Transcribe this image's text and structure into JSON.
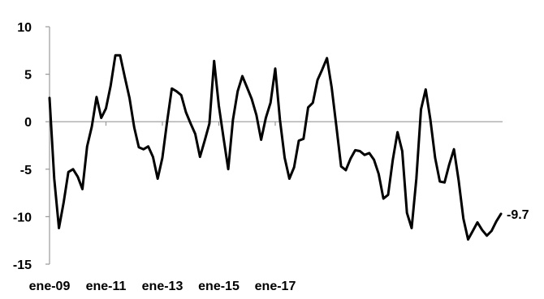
{
  "chart_data": {
    "type": "line",
    "title": "",
    "xlabel": "",
    "ylabel": "",
    "ylim": [
      -15,
      10
    ],
    "yticks": [
      10,
      5,
      0,
      -5,
      -10,
      -15
    ],
    "x_start": "ene-09",
    "x_period": "bimonthly",
    "xtick_labels": [
      "ene-09",
      "ene-11",
      "ene-13",
      "ene-15",
      "ene-17"
    ],
    "grid": false,
    "legend": "none",
    "line_color": "#000000",
    "end_label": "-9.7",
    "series": [
      {
        "values": [
          2.5,
          -6.0,
          -11.2,
          -8.5,
          -5.3,
          -5.0,
          -5.8,
          -7.1,
          -2.6,
          -0.5,
          2.6,
          0.4,
          1.4,
          3.8,
          7.0,
          7.0,
          4.7,
          2.5,
          -0.6,
          -2.7,
          -2.9,
          -2.6,
          -3.7,
          -6.0,
          -3.8,
          0.0,
          3.5,
          3.2,
          2.8,
          1.0,
          -0.2,
          -1.3,
          -3.7,
          -2.0,
          -0.2,
          6.4,
          1.7,
          -1.7,
          -5.0,
          0.2,
          3.2,
          4.8,
          3.6,
          2.4,
          0.7,
          -1.9,
          0.4,
          2.0,
          5.6,
          0.2,
          -3.8,
          -6.0,
          -4.8,
          -2.0,
          -1.8,
          1.5,
          2.0,
          4.4,
          5.5,
          6.7,
          3.6,
          -0.5,
          -4.7,
          -5.1,
          -3.9,
          -3.0,
          -3.1,
          -3.5,
          -3.3,
          -4.0,
          -5.5,
          -8.1,
          -7.7,
          -4.0,
          -1.1,
          -3.1,
          -9.6,
          -11.2,
          -6.0,
          1.3,
          3.4,
          0.2,
          -3.8,
          -6.3,
          -6.4,
          -4.5,
          -2.9,
          -6.2,
          -10.2,
          -12.4,
          -11.5,
          -10.6,
          -11.4,
          -12.0,
          -11.5,
          -10.5,
          -9.7
        ]
      }
    ]
  }
}
